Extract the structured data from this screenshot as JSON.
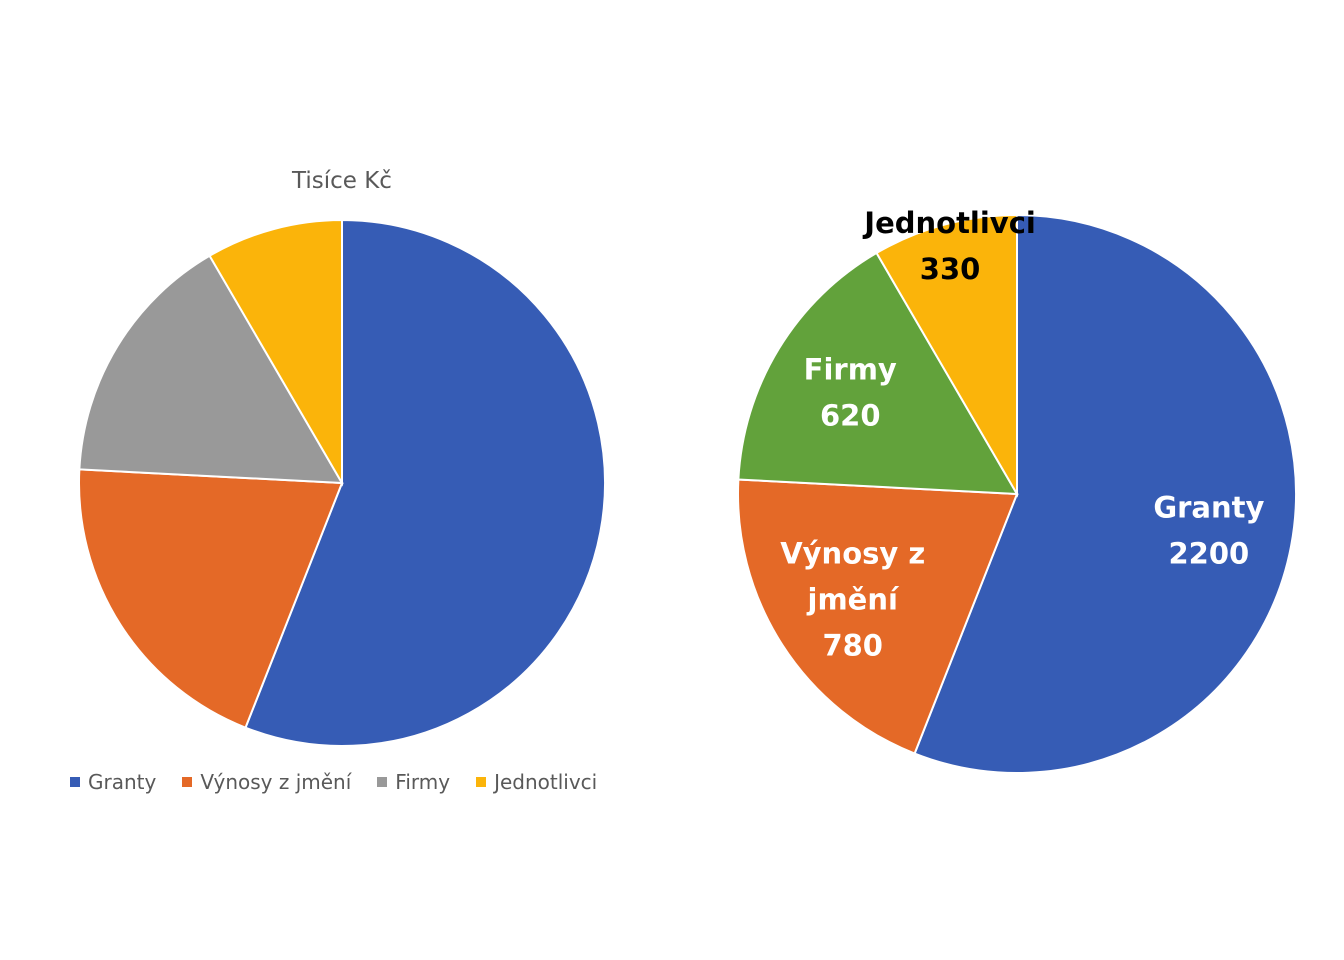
{
  "chart_data": [
    {
      "type": "pie",
      "title": "Tisíce Kč",
      "categories": [
        "Granty",
        "Výnosy z jmění",
        "Firmy",
        "Jednotlivci"
      ],
      "values": [
        2200,
        780,
        620,
        330
      ],
      "colors": [
        "#365cb5",
        "#e46927",
        "#999999",
        "#fbb40a"
      ],
      "legend": "bottom",
      "data_labels": false
    },
    {
      "type": "pie",
      "title": "",
      "categories": [
        "Granty",
        "Výnosy z jmění",
        "Firmy",
        "Jednotlivci"
      ],
      "values": [
        2200,
        780,
        620,
        330
      ],
      "colors": [
        "#365cb5",
        "#e46927",
        "#62a23b",
        "#fbb40a"
      ],
      "legend": "none",
      "data_labels": true,
      "label_lines": [
        [
          "Granty",
          "2200"
        ],
        [
          "Výnosy z",
          "jmění",
          "780"
        ],
        [
          "Firmy",
          "620"
        ],
        [
          "Jednotlivci",
          "330"
        ]
      ],
      "label_colors": [
        "#ffffff",
        "#ffffff",
        "#ffffff",
        "#000000"
      ]
    }
  ]
}
